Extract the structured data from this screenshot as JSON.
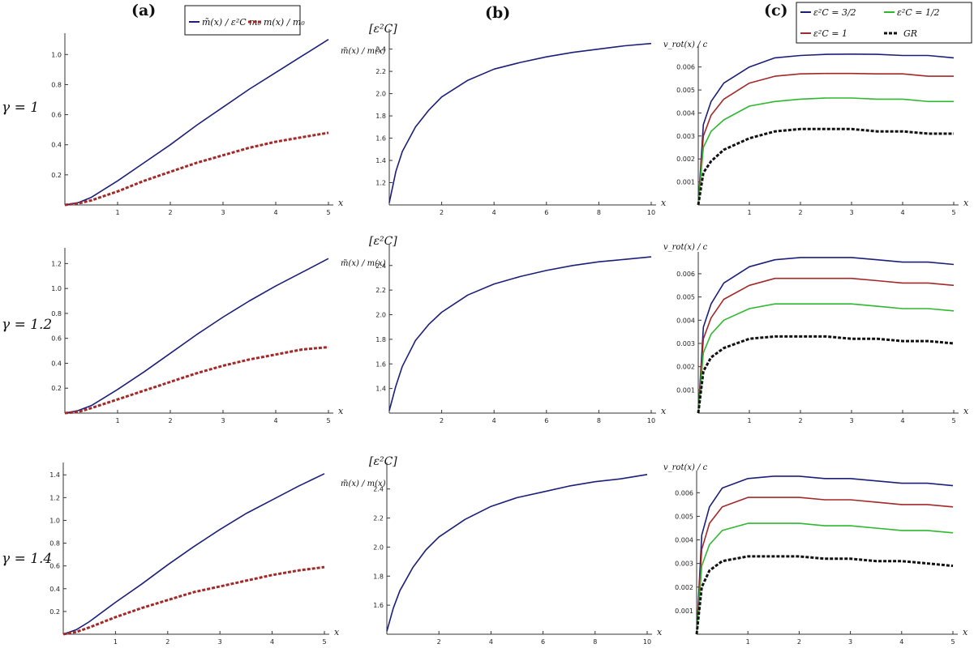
{
  "figure": {
    "column_headers": [
      "(a)",
      "(b)",
      "(c)"
    ],
    "row_labels": [
      "γ = 1",
      "γ = 1.2",
      "γ = 1.4"
    ],
    "legend_a": [
      "m̃(x) / ε²C m₀",
      "m(x) / m₀"
    ],
    "legend_c": [
      "ε²C = 3/2",
      "ε²C = 1/2",
      "ε²C = 1",
      "GR"
    ],
    "unit_label_b": "[ε²C]",
    "ylabel_b": "m̃(x) / m(x)",
    "ylabel_c": "v_rot(x) / c",
    "xlabel": "x",
    "colors": {
      "blue": "#1c1f7a",
      "red": "#a32828",
      "green": "#2fb82f",
      "black": "#111111",
      "axis": "#333333"
    }
  },
  "chart_data": [
    {
      "id": "a1",
      "type": "line",
      "title": "(a) γ = 1",
      "xlabel": "x",
      "ylabel": "",
      "xlim": [
        0,
        5
      ],
      "ylim": [
        0,
        1.12
      ],
      "xticks": [
        1,
        2,
        3,
        4,
        5
      ],
      "yticks": [
        0.2,
        0.4,
        0.6,
        0.8,
        1.0
      ],
      "x": [
        0,
        0.25,
        0.5,
        1,
        1.5,
        2,
        2.5,
        3,
        3.5,
        4,
        4.5,
        5
      ],
      "series": [
        {
          "name": "m̃(x)/ε²C m₀",
          "style": "solid",
          "color": "blue",
          "values": [
            0,
            0.015,
            0.05,
            0.16,
            0.28,
            0.4,
            0.53,
            0.65,
            0.77,
            0.88,
            0.99,
            1.1
          ]
        },
        {
          "name": "m(x)/m₀",
          "style": "dashed",
          "color": "red",
          "values": [
            0,
            0.01,
            0.03,
            0.09,
            0.16,
            0.22,
            0.28,
            0.33,
            0.38,
            0.42,
            0.45,
            0.48
          ]
        }
      ]
    },
    {
      "id": "b1",
      "type": "line",
      "title": "(b) γ = 1",
      "xlabel": "x",
      "ylabel": "m̃(x)/m(x)",
      "xlim": [
        0,
        10
      ],
      "ylim": [
        1.0,
        2.55
      ],
      "xticks": [
        2,
        4,
        6,
        8,
        10
      ],
      "yticks": [
        1.2,
        1.4,
        1.6,
        1.8,
        2.0,
        2.2,
        2.4
      ],
      "x": [
        0,
        0.25,
        0.5,
        1,
        1.5,
        2,
        3,
        4,
        5,
        6,
        7,
        8,
        9,
        10
      ],
      "series": [
        {
          "name": "m̃(x)/m(x)",
          "style": "solid",
          "color": "blue",
          "values": [
            1.02,
            1.3,
            1.48,
            1.7,
            1.85,
            1.97,
            2.12,
            2.22,
            2.28,
            2.33,
            2.37,
            2.4,
            2.43,
            2.45
          ]
        }
      ]
    },
    {
      "id": "c1",
      "type": "line",
      "title": "(c) γ = 1",
      "xlabel": "x",
      "ylabel": "v_rot(x)/c",
      "xlim": [
        0,
        5
      ],
      "ylim": [
        0,
        0.0068
      ],
      "xticks": [
        1,
        2,
        3,
        4,
        5
      ],
      "yticks": [
        0.001,
        0.002,
        0.003,
        0.004,
        0.005,
        0.006
      ],
      "x": [
        0,
        0.1,
        0.25,
        0.5,
        1,
        1.5,
        2,
        2.5,
        3,
        3.5,
        4,
        4.5,
        5
      ],
      "series": [
        {
          "name": "ε²C = 3/2",
          "style": "solid",
          "color": "blue",
          "values": [
            0,
            0.0035,
            0.0045,
            0.0053,
            0.006,
            0.0064,
            0.0065,
            0.00655,
            0.00656,
            0.00655,
            0.0065,
            0.0065,
            0.0064
          ]
        },
        {
          "name": "ε²C = 1",
          "style": "solid",
          "color": "red",
          "values": [
            0,
            0.003,
            0.0039,
            0.0046,
            0.0053,
            0.0056,
            0.0057,
            0.00572,
            0.00572,
            0.0057,
            0.0057,
            0.0056,
            0.0056
          ]
        },
        {
          "name": "ε²C = 1/2",
          "style": "solid",
          "color": "green",
          "values": [
            0,
            0.0025,
            0.0032,
            0.0037,
            0.0043,
            0.0045,
            0.0046,
            0.00465,
            0.00465,
            0.0046,
            0.0046,
            0.0045,
            0.0045
          ]
        },
        {
          "name": "GR",
          "style": "dashed",
          "color": "black",
          "values": [
            0,
            0.0014,
            0.0019,
            0.0024,
            0.0029,
            0.0032,
            0.0033,
            0.0033,
            0.0033,
            0.0032,
            0.0032,
            0.0031,
            0.0031
          ]
        }
      ]
    },
    {
      "id": "a2",
      "type": "line",
      "title": "(a) γ = 1.2",
      "xlabel": "x",
      "ylabel": "",
      "xlim": [
        0,
        5
      ],
      "ylim": [
        0,
        1.3
      ],
      "xticks": [
        1,
        2,
        3,
        4,
        5
      ],
      "yticks": [
        0.2,
        0.4,
        0.6,
        0.8,
        1.0,
        1.2
      ],
      "x": [
        0,
        0.25,
        0.5,
        1,
        1.5,
        2,
        2.5,
        3,
        3.5,
        4,
        4.5,
        5
      ],
      "series": [
        {
          "name": "m̃(x)/ε²C m₀",
          "style": "solid",
          "color": "blue",
          "values": [
            0,
            0.02,
            0.06,
            0.19,
            0.33,
            0.48,
            0.63,
            0.77,
            0.9,
            1.02,
            1.13,
            1.24
          ]
        },
        {
          "name": "m(x)/m₀",
          "style": "dashed",
          "color": "red",
          "values": [
            0,
            0.01,
            0.04,
            0.11,
            0.18,
            0.25,
            0.32,
            0.38,
            0.43,
            0.47,
            0.51,
            0.53
          ]
        }
      ]
    },
    {
      "id": "b2",
      "type": "line",
      "title": "(b) γ = 1.2",
      "xlabel": "x",
      "ylabel": "m̃(x)/m(x)",
      "xlim": [
        0,
        10
      ],
      "ylim": [
        1.2,
        2.55
      ],
      "xticks": [
        2,
        4,
        6,
        8,
        10
      ],
      "yticks": [
        1.4,
        1.6,
        1.8,
        2.0,
        2.2,
        2.4
      ],
      "x": [
        0,
        0.25,
        0.5,
        1,
        1.5,
        2,
        3,
        4,
        5,
        6,
        7,
        8,
        9,
        10
      ],
      "series": [
        {
          "name": "m̃(x)/m(x)",
          "style": "solid",
          "color": "blue",
          "values": [
            1.22,
            1.42,
            1.58,
            1.79,
            1.92,
            2.02,
            2.16,
            2.25,
            2.31,
            2.36,
            2.4,
            2.43,
            2.45,
            2.47
          ]
        }
      ]
    },
    {
      "id": "c2",
      "type": "line",
      "title": "(c) γ = 1.2",
      "xlabel": "x",
      "ylabel": "v_rot(x)/c",
      "xlim": [
        0,
        5
      ],
      "ylim": [
        0,
        0.0068
      ],
      "xticks": [
        1,
        2,
        3,
        4,
        5
      ],
      "yticks": [
        0.001,
        0.002,
        0.003,
        0.004,
        0.005,
        0.006
      ],
      "x": [
        0,
        0.1,
        0.25,
        0.5,
        1,
        1.5,
        2,
        2.5,
        3,
        3.5,
        4,
        4.5,
        5
      ],
      "series": [
        {
          "name": "ε²C = 3/2",
          "style": "solid",
          "color": "blue",
          "values": [
            0,
            0.0037,
            0.0047,
            0.0056,
            0.0063,
            0.0066,
            0.0067,
            0.0067,
            0.0067,
            0.0066,
            0.0065,
            0.0065,
            0.0064
          ]
        },
        {
          "name": "ε²C = 1",
          "style": "solid",
          "color": "red",
          "values": [
            0,
            0.0032,
            0.0041,
            0.0049,
            0.0055,
            0.0058,
            0.0058,
            0.0058,
            0.0058,
            0.0057,
            0.0056,
            0.0056,
            0.0055
          ]
        },
        {
          "name": "ε²C = 1/2",
          "style": "solid",
          "color": "green",
          "values": [
            0,
            0.0026,
            0.0034,
            0.004,
            0.0045,
            0.0047,
            0.0047,
            0.0047,
            0.0047,
            0.0046,
            0.0045,
            0.0045,
            0.0044
          ]
        },
        {
          "name": "GR",
          "style": "dashed",
          "color": "black",
          "values": [
            0,
            0.0018,
            0.0024,
            0.0028,
            0.0032,
            0.0033,
            0.0033,
            0.0033,
            0.0032,
            0.0032,
            0.0031,
            0.0031,
            0.003
          ]
        }
      ]
    },
    {
      "id": "a3",
      "type": "line",
      "title": "(a) γ = 1.4",
      "xlabel": "x",
      "ylabel": "",
      "xlim": [
        0,
        5
      ],
      "ylim": [
        0,
        1.48
      ],
      "xticks": [
        1,
        2,
        3,
        4,
        5
      ],
      "yticks": [
        0.2,
        0.4,
        0.6,
        0.8,
        1.0,
        1.2,
        1.4
      ],
      "x": [
        0,
        0.25,
        0.5,
        1,
        1.5,
        2,
        2.5,
        3,
        3.5,
        4,
        4.5,
        5
      ],
      "series": [
        {
          "name": "m̃(x)/ε²C m₀",
          "style": "solid",
          "color": "blue",
          "values": [
            0,
            0.04,
            0.11,
            0.28,
            0.44,
            0.61,
            0.77,
            0.92,
            1.06,
            1.18,
            1.3,
            1.41
          ]
        },
        {
          "name": "m(x)/m₀",
          "style": "dashed",
          "color": "red",
          "values": [
            0,
            0.02,
            0.06,
            0.15,
            0.23,
            0.3,
            0.37,
            0.42,
            0.47,
            0.52,
            0.56,
            0.59
          ]
        }
      ]
    },
    {
      "id": "b3",
      "type": "line",
      "title": "(b) γ = 1.4",
      "xlabel": "x",
      "ylabel": "m̃(x)/m(x)",
      "xlim": [
        0,
        10
      ],
      "ylim": [
        1.4,
        2.56
      ],
      "xticks": [
        2,
        4,
        6,
        8,
        10
      ],
      "yticks": [
        1.6,
        1.8,
        2.0,
        2.2,
        2.4
      ],
      "x": [
        0,
        0.25,
        0.5,
        1,
        1.5,
        2,
        3,
        4,
        5,
        6,
        7,
        8,
        9,
        10
      ],
      "series": [
        {
          "name": "m̃(x)/m(x)",
          "style": "solid",
          "color": "blue",
          "values": [
            1.42,
            1.58,
            1.7,
            1.86,
            1.98,
            2.07,
            2.19,
            2.28,
            2.34,
            2.38,
            2.42,
            2.45,
            2.47,
            2.5
          ]
        }
      ]
    },
    {
      "id": "c3",
      "type": "line",
      "title": "(c) γ = 1.4",
      "xlabel": "x",
      "ylabel": "v_rot(x)/c",
      "xlim": [
        0,
        5
      ],
      "ylim": [
        0,
        0.0068
      ],
      "xticks": [
        1,
        2,
        3,
        4,
        5
      ],
      "yticks": [
        0.001,
        0.002,
        0.003,
        0.004,
        0.005,
        0.006
      ],
      "x": [
        0,
        0.1,
        0.25,
        0.5,
        1,
        1.5,
        2,
        2.5,
        3,
        3.5,
        4,
        4.5,
        5
      ],
      "series": [
        {
          "name": "ε²C = 3/2",
          "style": "solid",
          "color": "blue",
          "values": [
            0,
            0.0042,
            0.0054,
            0.0062,
            0.0066,
            0.0067,
            0.0067,
            0.0066,
            0.0066,
            0.0065,
            0.0064,
            0.0064,
            0.0063
          ]
        },
        {
          "name": "ε²C = 1",
          "style": "solid",
          "color": "red",
          "values": [
            0,
            0.0036,
            0.0047,
            0.0054,
            0.0058,
            0.0058,
            0.0058,
            0.0057,
            0.0057,
            0.0056,
            0.0055,
            0.0055,
            0.0054
          ]
        },
        {
          "name": "ε²C = 1/2",
          "style": "solid",
          "color": "green",
          "values": [
            0,
            0.0029,
            0.0038,
            0.0044,
            0.0047,
            0.0047,
            0.0047,
            0.0046,
            0.0046,
            0.0045,
            0.0044,
            0.0044,
            0.0043
          ]
        },
        {
          "name": "GR",
          "style": "dashed",
          "color": "black",
          "values": [
            0,
            0.002,
            0.0027,
            0.0031,
            0.0033,
            0.0033,
            0.0033,
            0.0032,
            0.0032,
            0.0031,
            0.0031,
            0.003,
            0.0029
          ]
        }
      ]
    }
  ]
}
